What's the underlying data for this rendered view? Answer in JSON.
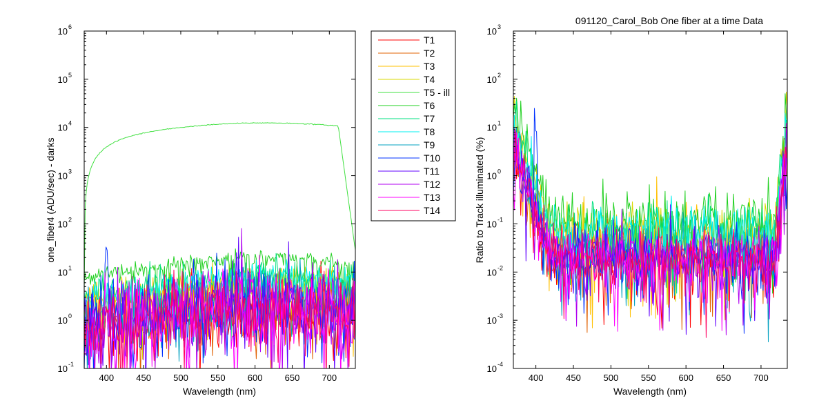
{
  "chart_data": [
    {
      "type": "line",
      "title": "",
      "xlabel": "Wavelength (nm)",
      "ylabel": "one_fiber4  (ADU/sec) - darks",
      "yscale": "log",
      "xlim": [
        370,
        735
      ],
      "ylim_exponents": [
        -1,
        6
      ],
      "xticks": [
        400,
        450,
        500,
        550,
        600,
        650,
        700
      ],
      "xtick_labels": [
        "400",
        "450",
        "500",
        "550",
        "600",
        "650",
        "700"
      ],
      "ytick_exponents": [
        -1,
        0,
        1,
        2,
        3,
        4,
        5,
        6
      ],
      "ytick_exponent_labels": [
        "-1",
        "0",
        "1",
        "2",
        "3",
        "4",
        "5",
        "6"
      ],
      "ytick_base_label": "10",
      "grid": false,
      "series_shape_note": "each trace is a noisy spectrum; values are approximate smooth levels",
      "series": [
        {
          "name": "T1",
          "color": "#ff0000",
          "level": 1.8,
          "noise": 0.35,
          "peak400": 2
        },
        {
          "name": "T2",
          "color": "#e06000",
          "level": 2.0,
          "noise": 0.35,
          "peak400": 2
        },
        {
          "name": "T3",
          "color": "#ffc000",
          "level": 5.5,
          "noise": 0.2,
          "peak400": 2
        },
        {
          "name": "T4",
          "color": "#d8d800",
          "level": 6.0,
          "noise": 0.2,
          "peak400": 2
        },
        {
          "name": "T5 - ill",
          "color": "#40e040",
          "level": 12500,
          "noise": 0.01,
          "peak400": 1
        },
        {
          "name": "T6",
          "color": "#20d020",
          "level": 20.0,
          "noise": 0.08,
          "peak400": 1
        },
        {
          "name": "T7",
          "color": "#00e080",
          "level": 9.0,
          "noise": 0.15,
          "peak400": 2
        },
        {
          "name": "T8",
          "color": "#00f0f0",
          "level": 7.0,
          "noise": 0.15,
          "peak400": 2
        },
        {
          "name": "T9",
          "color": "#00a0c0",
          "level": 3.0,
          "noise": 0.3,
          "peak400": 2
        },
        {
          "name": "T10",
          "color": "#0030ff",
          "level": 2.2,
          "noise": 0.4,
          "peak400": 40
        },
        {
          "name": "T11",
          "color": "#6000ff",
          "level": 2.5,
          "noise": 0.35,
          "peak400": 2
        },
        {
          "name": "T12",
          "color": "#b000f0",
          "level": 2.0,
          "noise": 0.45,
          "peak400": 2
        },
        {
          "name": "T13",
          "color": "#ff00ff",
          "level": 2.0,
          "noise": 0.45,
          "peak400": 2
        },
        {
          "name": "T14",
          "color": "#ff0060",
          "level": 2.0,
          "noise": 0.35,
          "peak400": 2
        }
      ]
    },
    {
      "type": "line",
      "title": "091120_Carol_Bob  One fiber at a time Data",
      "xlabel": "Wavelength (nm)",
      "ylabel": "Ratio to Track illuminated (%)",
      "yscale": "log",
      "xlim": [
        370,
        735
      ],
      "ylim_exponents": [
        -4,
        3
      ],
      "xticks": [
        400,
        450,
        500,
        550,
        600,
        650,
        700
      ],
      "xtick_labels": [
        "400",
        "450",
        "500",
        "550",
        "600",
        "650",
        "700"
      ],
      "ytick_exponents": [
        -4,
        -3,
        -2,
        -1,
        0,
        1,
        2,
        3
      ],
      "ytick_exponent_labels": [
        "-4",
        "-3",
        "-2",
        "-1",
        "0",
        "1",
        "2",
        "3"
      ],
      "ytick_base_label": "10",
      "grid": false,
      "series_shape_note": "ratio of each trace to T5; approximate plateau levels in percent",
      "series": [
        {
          "name": "T1",
          "color": "#ff0000",
          "level": 0.02
        },
        {
          "name": "T2",
          "color": "#e06000",
          "level": 0.025
        },
        {
          "name": "T3",
          "color": "#ffc000",
          "level": 0.06
        },
        {
          "name": "T4",
          "color": "#d8d800",
          "level": 0.065
        },
        {
          "name": "T6",
          "color": "#20d020",
          "level": 0.14
        },
        {
          "name": "T7",
          "color": "#00e080",
          "level": 0.08
        },
        {
          "name": "T8",
          "color": "#00f0f0",
          "level": 0.06
        },
        {
          "name": "T9",
          "color": "#00a0c0",
          "level": 0.03
        },
        {
          "name": "T10",
          "color": "#0030ff",
          "level": 0.02
        },
        {
          "name": "T11",
          "color": "#6000ff",
          "level": 0.025
        },
        {
          "name": "T12",
          "color": "#b000f0",
          "level": 0.02
        },
        {
          "name": "T13",
          "color": "#ff00ff",
          "level": 0.02
        },
        {
          "name": "T14",
          "color": "#ff0060",
          "level": 0.02
        }
      ]
    }
  ],
  "legend": {
    "placement": "between-plots",
    "entries": [
      {
        "label": "T1",
        "color": "#ff0000"
      },
      {
        "label": "T2",
        "color": "#e06000"
      },
      {
        "label": "T3",
        "color": "#ffc000"
      },
      {
        "label": "T4",
        "color": "#d8d800"
      },
      {
        "label": "T5 - ill",
        "color": "#40e040"
      },
      {
        "label": "T6",
        "color": "#20d020"
      },
      {
        "label": "T7",
        "color": "#00e080"
      },
      {
        "label": "T8",
        "color": "#00f0f0"
      },
      {
        "label": "T9",
        "color": "#00a0c0"
      },
      {
        "label": "T10",
        "color": "#0030ff"
      },
      {
        "label": "T11",
        "color": "#6000ff"
      },
      {
        "label": "T12",
        "color": "#b000f0"
      },
      {
        "label": "T13",
        "color": "#ff00ff"
      },
      {
        "label": "T14",
        "color": "#ff0060"
      }
    ]
  }
}
